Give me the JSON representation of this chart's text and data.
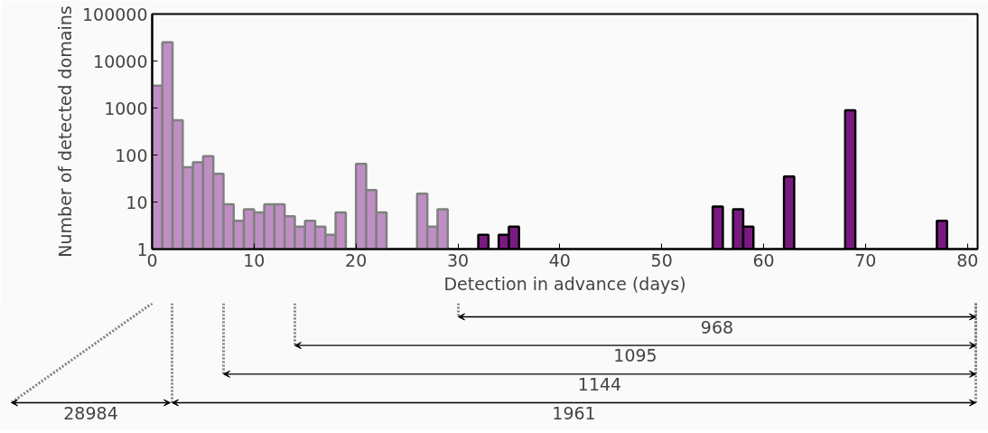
{
  "chart_data": {
    "type": "bar",
    "xlabel": "Detection in advance (days)",
    "ylabel": "Number of detected domains",
    "series": [
      {
        "color": "#bf8fc4",
        "x": [
          0.5,
          1.5,
          2.5,
          3.5,
          4.5,
          5.5,
          6.5,
          7.5,
          8.5,
          9.5,
          10.5,
          11.5,
          12.5,
          13.5,
          14.5,
          15.5,
          16.5,
          17.5,
          18.5,
          20.5,
          21.5,
          22.5,
          26.5,
          27.5,
          28.5
        ],
        "values": [
          3000,
          25000,
          550,
          55,
          70,
          95,
          40,
          9,
          4,
          7,
          6,
          9,
          9,
          5,
          3,
          4,
          3,
          2,
          6,
          65,
          18,
          6,
          15,
          3,
          7
        ]
      },
      {
        "color": "#7a1a80",
        "x": [
          32.5,
          34.5,
          35.5,
          55.5,
          57.5,
          58.5,
          62.5,
          68.5,
          77.5
        ],
        "values": [
          2,
          2,
          3,
          8,
          7,
          3,
          35,
          900,
          4
        ]
      }
    ],
    "xlim": [
      0,
      81
    ],
    "xticks": [
      0,
      10,
      20,
      30,
      40,
      50,
      60,
      70,
      80
    ],
    "ylim": [
      1,
      100000
    ],
    "yticks": [
      1,
      10,
      100,
      1000,
      10000,
      100000
    ],
    "log": "y",
    "grid": false,
    "annotations": [
      "968",
      "1095",
      "1144",
      "1961",
      "28984"
    ]
  }
}
